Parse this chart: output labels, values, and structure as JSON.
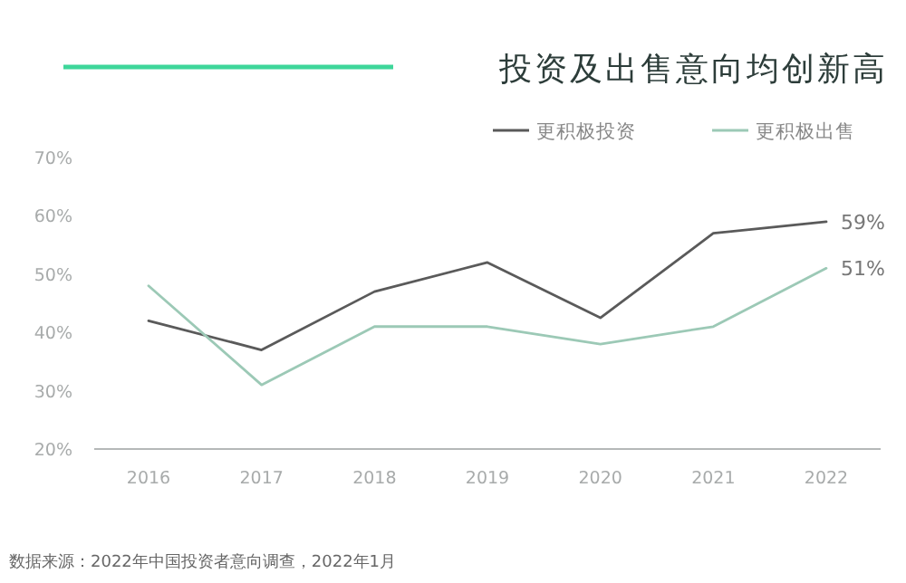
{
  "chart_data": {
    "type": "line",
    "title": "投资及出售意向均创新高",
    "categories": [
      "2016",
      "2017",
      "2018",
      "2019",
      "2020",
      "2021",
      "2022"
    ],
    "series": [
      {
        "name": "更积极投资",
        "color": "#5a5a5a",
        "values": [
          42,
          37,
          47,
          52,
          42.5,
          57,
          59
        ],
        "value_labels": [
          null,
          null,
          null,
          null,
          null,
          null,
          "59%"
        ]
      },
      {
        "name": "更积极出售",
        "color": "#9cc9b6",
        "values": [
          48,
          31,
          41,
          41,
          38,
          41,
          51
        ],
        "value_labels": [
          null,
          null,
          null,
          null,
          null,
          null,
          "51%"
        ]
      }
    ],
    "ylim": [
      20,
      70
    ],
    "yticks": [
      {
        "value": 20,
        "label": "20%"
      },
      {
        "value": 30,
        "label": "30%"
      },
      {
        "value": 40,
        "label": "40%"
      },
      {
        "value": 50,
        "label": "50%"
      },
      {
        "value": 60,
        "label": "60%"
      },
      {
        "value": 70,
        "label": "70%"
      }
    ],
    "legend": "top right",
    "grid": false,
    "marker": "none",
    "line_style": "solid",
    "annotations": [
      "数据来源：2022年中国投资者意向调查，2022年1月"
    ]
  }
}
